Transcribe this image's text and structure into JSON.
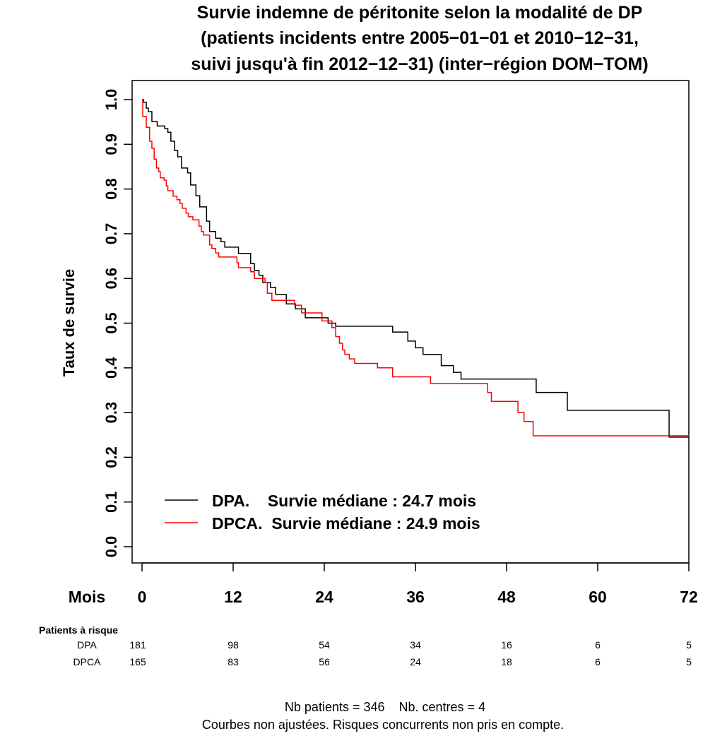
{
  "chart_data": {
    "type": "line",
    "step": true,
    "title": [
      "Survie indemne de péritonite selon la modalité de DP",
      "(patients incidents entre 2005−01−01 et 2010−12−31,",
      "suivi jusqu'à fin 2012−12−31) (inter−région DOM−TOM)"
    ],
    "ylabel": "Taux de survie",
    "xlabel": "Mois",
    "xlim": [
      0,
      72
    ],
    "ylim": [
      0,
      1
    ],
    "xticks": [
      0,
      12,
      24,
      36,
      48,
      60,
      72
    ],
    "yticks": [
      "0.0",
      "0.1",
      "0.2",
      "0.3",
      "0.4",
      "0.5",
      "0.6",
      "0.7",
      "0.8",
      "0.9",
      "1.0"
    ],
    "grid": false,
    "legend_position": "bottom-left",
    "series": [
      {
        "name": "DPA.",
        "legend": "DPA.    Survie médiane : 24.7 mois",
        "color": "#000000",
        "t": [
          0,
          0.2,
          0.56,
          0.84,
          1.3,
          2.0,
          3.0,
          3.4,
          3.8,
          4.3,
          4.7,
          5.2,
          6.0,
          6.4,
          7.1,
          7.6,
          8.5,
          8.9,
          9.7,
          10.4,
          10.9,
          12.7,
          14.3,
          14.8,
          15.4,
          15.9,
          16.9,
          17.6,
          19.0,
          20.2,
          21.5,
          24.5,
          25.5,
          33.0,
          35.0,
          36.0,
          37.0,
          39.4,
          41.0,
          42.0,
          51.9,
          56.0,
          69.4,
          72
        ],
        "s": [
          1,
          0.994,
          0.981,
          0.973,
          0.951,
          0.941,
          0.935,
          0.927,
          0.907,
          0.886,
          0.872,
          0.847,
          0.836,
          0.809,
          0.785,
          0.76,
          0.728,
          0.705,
          0.69,
          0.682,
          0.67,
          0.656,
          0.633,
          0.618,
          0.607,
          0.591,
          0.58,
          0.564,
          0.543,
          0.532,
          0.512,
          0.5,
          0.493,
          0.48,
          0.46,
          0.445,
          0.43,
          0.405,
          0.39,
          0.375,
          0.345,
          0.305,
          0.245,
          0.245
        ]
      },
      {
        "name": "DPCA.",
        "legend": "DPCA.  Survie médiane : 24.9 mois",
        "color": "#ff0000",
        "t": [
          0,
          0.1,
          0.56,
          1.0,
          1.3,
          1.6,
          1.9,
          2.2,
          2.4,
          2.9,
          3.2,
          3.4,
          4.1,
          4.6,
          5.0,
          5.3,
          5.8,
          6.1,
          6.7,
          7.5,
          7.8,
          8.1,
          8.9,
          9.2,
          9.7,
          10.1,
          12.5,
          12.7,
          14.3,
          14.8,
          16.2,
          16.5,
          17.1,
          20.1,
          21.0,
          23.7,
          25.0,
          25.5,
          26.0,
          26.4,
          26.7,
          27.3,
          28.0,
          31.0,
          33.0,
          38.0,
          45.5,
          46.0,
          49.5,
          50.3,
          51.5,
          72
        ],
        "s": [
          1,
          0.962,
          0.938,
          0.907,
          0.891,
          0.867,
          0.847,
          0.839,
          0.825,
          0.82,
          0.807,
          0.796,
          0.784,
          0.776,
          0.768,
          0.757,
          0.746,
          0.738,
          0.731,
          0.717,
          0.705,
          0.697,
          0.675,
          0.667,
          0.657,
          0.648,
          0.635,
          0.624,
          0.615,
          0.6,
          0.591,
          0.567,
          0.551,
          0.54,
          0.523,
          0.505,
          0.49,
          0.47,
          0.455,
          0.44,
          0.43,
          0.42,
          0.41,
          0.4,
          0.38,
          0.365,
          0.345,
          0.325,
          0.3,
          0.28,
          0.248,
          0.248
        ]
      }
    ]
  },
  "risk_table": {
    "title": "Patients à risque",
    "rows": [
      {
        "label": "DPA",
        "values": [
          "181",
          "98",
          "54",
          "34",
          "16",
          "6",
          "5"
        ]
      },
      {
        "label": "DPCA",
        "values": [
          "165",
          "83",
          "56",
          "24",
          "18",
          "6",
          "5"
        ]
      }
    ]
  },
  "footer": {
    "line1": "Nb patients = 346    Nb. centres = 4",
    "line2": "Courbes non ajustées. Risques concurrents non pris en compte."
  }
}
